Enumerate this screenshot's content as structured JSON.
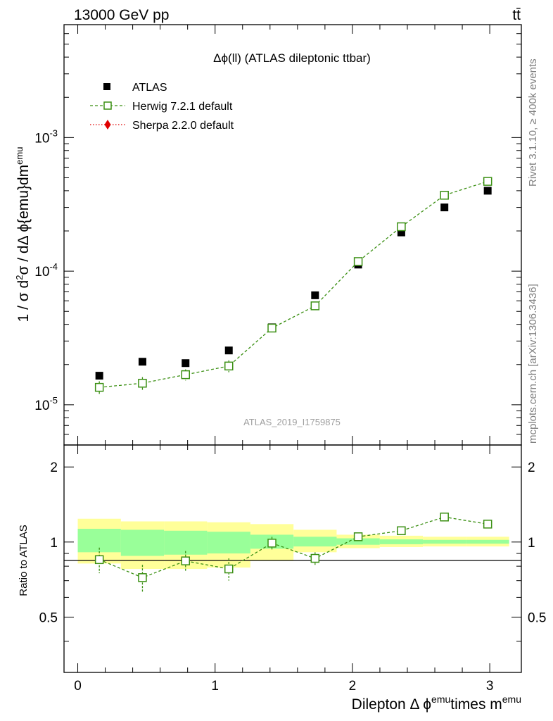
{
  "header": {
    "left": "13000 GeV pp",
    "right": "tt̄"
  },
  "side_text": {
    "rivet": "Rivet 3.1.10, ≥ 400k events",
    "mcplots": "mcplots.cern.ch [arXiv:1306.3436]"
  },
  "main_title": "Δϕ(ll) (ATLAS dileptonic ttbar)",
  "analysis_id": "ATLAS_2019_I1759875",
  "colors": {
    "atlas": "#000000",
    "herwig": "#3a8f12",
    "sherpa": "#e00000",
    "band_inner": "#99ff99",
    "band_outer": "#ffff99"
  },
  "chart_data": [
    {
      "type": "scatter",
      "panel": "main",
      "ylabel": "1 / σ d²σ / dΔ ϕ{emu}dm^emu",
      "xlim": [
        -0.1,
        3.23
      ],
      "ylim": [
        5e-06,
        0.007
      ],
      "yscale": "log",
      "ytick_labels": [
        {
          "value": 1e-05,
          "base": "10",
          "exp": "-5"
        },
        {
          "value": 0.0001,
          "base": "10",
          "exp": "-4"
        },
        {
          "value": 0.001,
          "base": "10",
          "exp": "-3"
        }
      ],
      "legend_placement": "top-left",
      "series": [
        {
          "name": "ATLAS",
          "marker": "filled-square",
          "x": [
            0.157,
            0.471,
            0.785,
            1.1,
            1.414,
            1.728,
            2.042,
            2.356,
            2.67,
            2.985
          ],
          "y": [
            1.65e-05,
            2.1e-05,
            2.05e-05,
            2.55e-05,
            3.8e-05,
            6.6e-05,
            0.000112,
            0.000195,
            0.0003,
            0.0004
          ],
          "band_outer": [
            [
              1.25e-05,
              2.02e-05
            ],
            [
              1.6e-05,
              2.6e-05
            ],
            [
              1.58e-05,
              2.5e-05
            ],
            [
              1.95e-05,
              3.1e-05
            ],
            [
              3.2e-05,
              4.5e-05
            ],
            [
              5.85e-05,
              7.45e-05
            ],
            [
              0.000104,
              0.000121
            ],
            [
              0.000183,
              0.000207
            ],
            [
              0.000284,
              0.000316
            ],
            [
              0.00038,
              0.00042
            ]
          ]
        },
        {
          "name": "Herwig 7.2.1 default",
          "marker": "open-square",
          "line": "dashed",
          "x": [
            0.157,
            0.471,
            0.785,
            1.1,
            1.414,
            1.728,
            2.042,
            2.356,
            2.67,
            2.985
          ],
          "y": [
            1.35e-05,
            1.45e-05,
            1.68e-05,
            1.95e-05,
            3.75e-05,
            5.5e-05,
            0.000118,
            0.000215,
            0.00037,
            0.00047
          ],
          "yerr": [
            1.5e-06,
            1.6e-06,
            1.6e-06,
            2e-06,
            2.5e-06,
            3e-06,
            5e-06,
            8e-06,
            1.2e-05,
            1.5e-05
          ]
        },
        {
          "name": "Sherpa 2.2.0 default",
          "marker": "filled-diamond",
          "line": "dotted",
          "x": [],
          "y": []
        }
      ]
    },
    {
      "type": "line",
      "panel": "ratio",
      "ylabel": "Ratio to ATLAS",
      "xlabel": "Dilepton Δ ϕ^emu times m^emu",
      "xlim": [
        -0.1,
        3.23
      ],
      "ylim": [
        0.3,
        2.45
      ],
      "yscale": "log",
      "xticks": [
        0,
        1,
        2,
        3
      ],
      "yticks": [
        0.5,
        1,
        2
      ],
      "bin_edges": [
        0.0,
        0.314,
        0.628,
        0.942,
        1.257,
        1.571,
        1.885,
        2.199,
        2.513,
        2.827,
        3.141
      ],
      "band_inner": [
        [
          0.91,
          1.13
        ],
        [
          0.88,
          1.12
        ],
        [
          0.89,
          1.11
        ],
        [
          0.9,
          1.1
        ],
        [
          0.94,
          1.07
        ],
        [
          0.96,
          1.05
        ],
        [
          0.975,
          1.035
        ],
        [
          0.98,
          1.025
        ],
        [
          0.985,
          1.02
        ],
        [
          0.985,
          1.02
        ]
      ],
      "band_outer": [
        [
          0.82,
          1.24
        ],
        [
          0.78,
          1.21
        ],
        [
          0.78,
          1.21
        ],
        [
          0.79,
          1.2
        ],
        [
          0.84,
          1.18
        ],
        [
          0.91,
          1.12
        ],
        [
          0.945,
          1.07
        ],
        [
          0.955,
          1.06
        ],
        [
          0.96,
          1.05
        ],
        [
          0.96,
          1.05
        ]
      ],
      "series": [
        {
          "name": "Herwig 7.2.1 default",
          "x": [
            0.157,
            0.471,
            0.785,
            1.1,
            1.414,
            1.728,
            2.042,
            2.356,
            2.67,
            2.985
          ],
          "y": [
            0.85,
            0.72,
            0.84,
            0.78,
            0.99,
            0.86,
            1.05,
            1.11,
            1.26,
            1.18
          ],
          "yerr": [
            0.1,
            0.09,
            0.08,
            0.08,
            0.06,
            0.05,
            0.04,
            0.03,
            0.03,
            0.03
          ]
        }
      ]
    }
  ]
}
